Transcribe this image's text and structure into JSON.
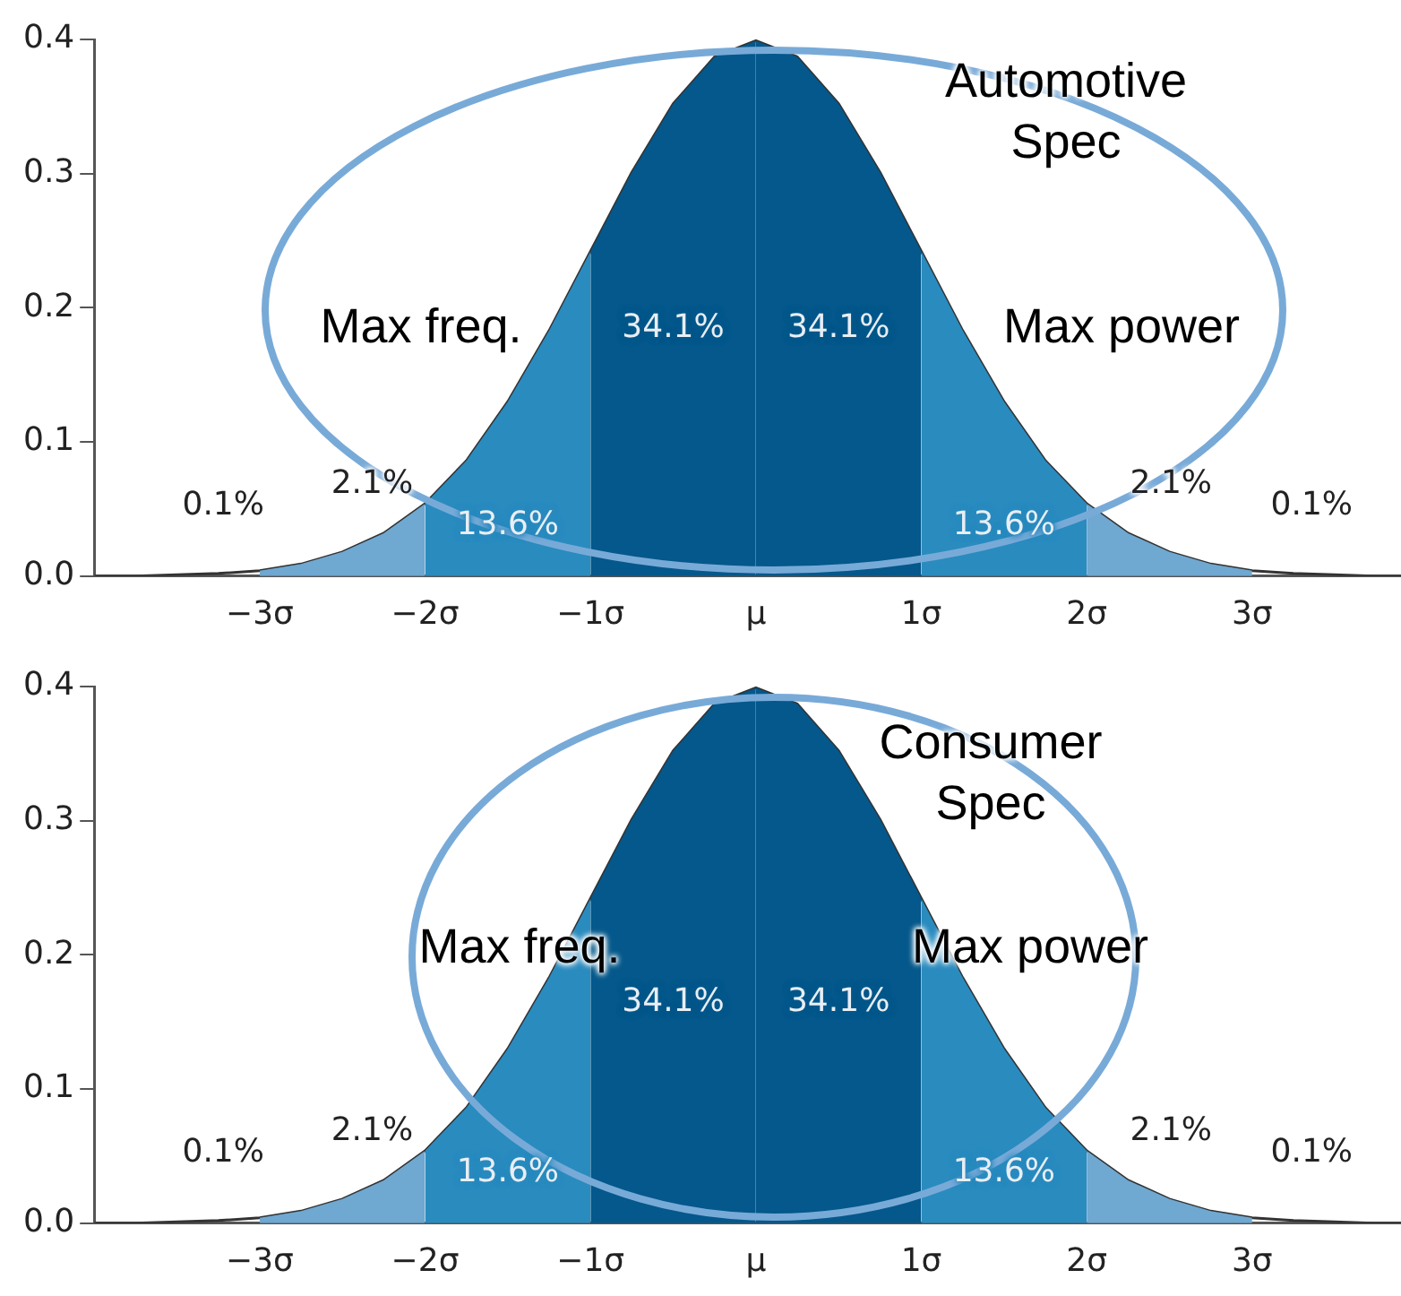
{
  "chart_data": [
    {
      "type": "area",
      "xlim": [
        -4,
        3.9
      ],
      "ylim": [
        0,
        0.4
      ],
      "xticks": [
        {
          "value": -3,
          "label": "−3σ"
        },
        {
          "value": -2,
          "label": "−2σ"
        },
        {
          "value": -1,
          "label": "−1σ"
        },
        {
          "value": 0,
          "label": "μ"
        },
        {
          "value": 1,
          "label": "1σ"
        },
        {
          "value": 2,
          "label": "2σ"
        },
        {
          "value": 3,
          "label": "3σ"
        }
      ],
      "yticks": [
        {
          "value": 0,
          "label": "0.0"
        },
        {
          "value": 0.1,
          "label": "0.1"
        },
        {
          "value": 0.2,
          "label": "0.2"
        },
        {
          "value": 0.3,
          "label": "0.3"
        },
        {
          "value": 0.4,
          "label": "0.4"
        }
      ],
      "grid": false,
      "legend": false,
      "marker": "none",
      "series": [
        {
          "type": "area",
          "color": "#6fa8d0",
          "x": [
            -3,
            -2.75,
            -2.5,
            -2.25,
            -2
          ],
          "values": [
            0.004,
            0.009,
            0.018,
            0.032,
            0.054
          ]
        },
        {
          "type": "area",
          "color": "#2a8bbf",
          "x": [
            -2,
            -1.75,
            -1.5,
            -1.25,
            -1
          ],
          "values": [
            0.054,
            0.086,
            0.13,
            0.183,
            0.242
          ]
        },
        {
          "type": "area",
          "color": "#04588b",
          "x": [
            -1,
            -0.75,
            -0.5,
            -0.25,
            0
          ],
          "values": [
            0.242,
            0.301,
            0.352,
            0.387,
            0.399
          ]
        },
        {
          "type": "area",
          "color": "#04588b",
          "x": [
            0,
            0.25,
            0.5,
            0.75,
            1
          ],
          "values": [
            0.399,
            0.387,
            0.352,
            0.301,
            0.242
          ]
        },
        {
          "type": "area",
          "color": "#2a8bbf",
          "x": [
            1,
            1.25,
            1.5,
            1.75,
            2
          ],
          "values": [
            0.242,
            0.183,
            0.13,
            0.086,
            0.054
          ]
        },
        {
          "type": "area",
          "color": "#6fa8d0",
          "x": [
            2,
            2.25,
            2.5,
            2.75,
            3
          ],
          "values": [
            0.054,
            0.032,
            0.018,
            0.009,
            0.004
          ]
        },
        {
          "type": "line",
          "color": "#333333",
          "x": [
            -4,
            -3.75,
            -3.5,
            -3.25,
            -3,
            -2.75,
            -2.5,
            -2.25,
            -2,
            -1.75,
            -1.5,
            -1.25,
            -1,
            -0.75,
            -0.5,
            -0.25,
            0,
            0.25,
            0.5,
            0.75,
            1,
            1.25,
            1.5,
            1.75,
            2,
            2.25,
            2.5,
            2.75,
            3,
            3.25,
            3.5,
            3.75,
            3.9
          ],
          "values": [
            0.0,
            0.0,
            0.001,
            0.002,
            0.004,
            0.009,
            0.018,
            0.032,
            0.054,
            0.086,
            0.13,
            0.183,
            0.242,
            0.301,
            0.352,
            0.387,
            0.399,
            0.387,
            0.352,
            0.301,
            0.242,
            0.183,
            0.13,
            0.086,
            0.054,
            0.032,
            0.018,
            0.009,
            0.004,
            0.002,
            0.001,
            0.0,
            0.0
          ]
        }
      ],
      "annotations": [
        "Automotive Spec",
        "Max freq.",
        "Max power",
        "0.1%",
        "2.1%",
        "13.6%",
        "34.1%",
        "34.1%",
        "13.6%",
        "2.1%",
        "0.1%"
      ]
    },
    {
      "type": "area",
      "xlim": [
        -4,
        3.9
      ],
      "ylim": [
        0,
        0.4
      ],
      "xticks": [
        {
          "value": -3,
          "label": "−3σ"
        },
        {
          "value": -2,
          "label": "−2σ"
        },
        {
          "value": -1,
          "label": "−1σ"
        },
        {
          "value": 0,
          "label": "μ"
        },
        {
          "value": 1,
          "label": "1σ"
        },
        {
          "value": 2,
          "label": "2σ"
        },
        {
          "value": 3,
          "label": "3σ"
        }
      ],
      "yticks": [
        {
          "value": 0,
          "label": "0.0"
        },
        {
          "value": 0.1,
          "label": "0.1"
        },
        {
          "value": 0.2,
          "label": "0.2"
        },
        {
          "value": 0.3,
          "label": "0.3"
        },
        {
          "value": 0.4,
          "label": "0.4"
        }
      ],
      "grid": false,
      "legend": false,
      "marker": "none",
      "series": [
        {
          "type": "area",
          "color": "#6fa8d0",
          "x": [
            -3,
            -2.75,
            -2.5,
            -2.25,
            -2
          ],
          "values": [
            0.004,
            0.009,
            0.018,
            0.032,
            0.054
          ]
        },
        {
          "type": "area",
          "color": "#2a8bbf",
          "x": [
            -2,
            -1.75,
            -1.5,
            -1.25,
            -1
          ],
          "values": [
            0.054,
            0.086,
            0.13,
            0.183,
            0.242
          ]
        },
        {
          "type": "area",
          "color": "#04588b",
          "x": [
            -1,
            -0.75,
            -0.5,
            -0.25,
            0
          ],
          "values": [
            0.242,
            0.301,
            0.352,
            0.387,
            0.399
          ]
        },
        {
          "type": "area",
          "color": "#04588b",
          "x": [
            0,
            0.25,
            0.5,
            0.75,
            1
          ],
          "values": [
            0.399,
            0.387,
            0.352,
            0.301,
            0.242
          ]
        },
        {
          "type": "area",
          "color": "#2a8bbf",
          "x": [
            1,
            1.25,
            1.5,
            1.75,
            2
          ],
          "values": [
            0.242,
            0.183,
            0.13,
            0.086,
            0.054
          ]
        },
        {
          "type": "area",
          "color": "#6fa8d0",
          "x": [
            2,
            2.25,
            2.5,
            2.75,
            3
          ],
          "values": [
            0.054,
            0.032,
            0.018,
            0.009,
            0.004
          ]
        },
        {
          "type": "line",
          "color": "#333333",
          "x": [
            -4,
            -3.75,
            -3.5,
            -3.25,
            -3,
            -2.75,
            -2.5,
            -2.25,
            -2,
            -1.75,
            -1.5,
            -1.25,
            -1,
            -0.75,
            -0.5,
            -0.25,
            0,
            0.25,
            0.5,
            0.75,
            1,
            1.25,
            1.5,
            1.75,
            2,
            2.25,
            2.5,
            2.75,
            3,
            3.25,
            3.5,
            3.75,
            3.9
          ],
          "values": [
            0.0,
            0.0,
            0.001,
            0.002,
            0.004,
            0.009,
            0.018,
            0.032,
            0.054,
            0.086,
            0.13,
            0.183,
            0.242,
            0.301,
            0.352,
            0.387,
            0.399,
            0.387,
            0.352,
            0.301,
            0.242,
            0.183,
            0.13,
            0.086,
            0.054,
            0.032,
            0.018,
            0.009,
            0.004,
            0.002,
            0.001,
            0.0,
            0.0
          ]
        }
      ],
      "annotations": [
        "Consumer Spec",
        "Max freq.",
        "Max power",
        "0.1%",
        "2.1%",
        "13.6%",
        "34.1%",
        "34.1%",
        "13.6%",
        "2.1%",
        "0.1%"
      ]
    }
  ]
}
